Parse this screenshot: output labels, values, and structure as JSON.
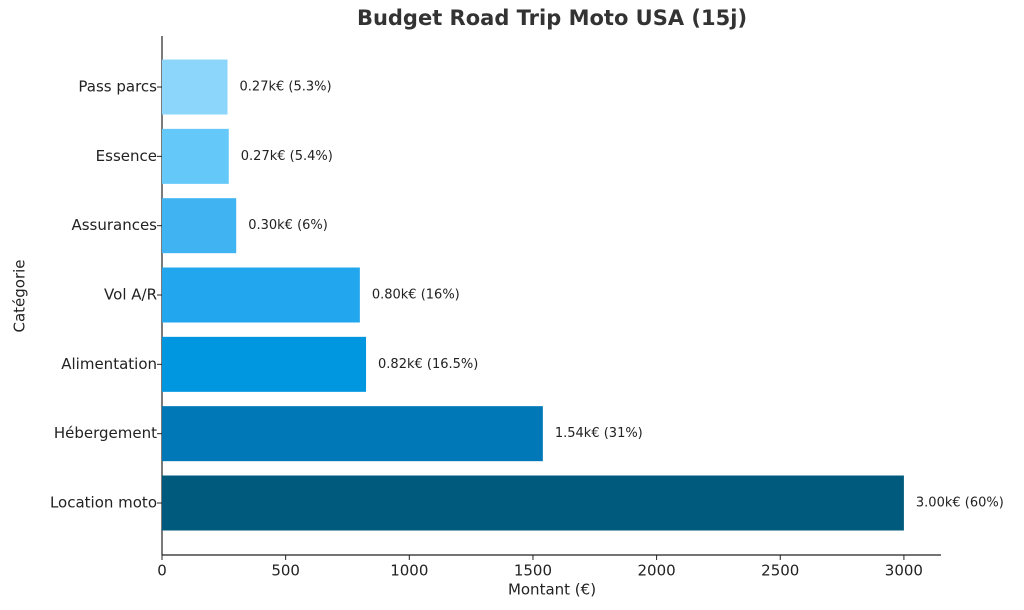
{
  "chart_data": {
    "type": "barh",
    "title": "Budget Road Trip Moto USA (15j)",
    "x_label": "Montant (€)",
    "y_label": "Catégorie",
    "categories": [
      "Location moto",
      "Hébergement",
      "Alimentation",
      "Vol A/R",
      "Assurances",
      "Essence",
      "Pass parcs"
    ],
    "values": [
      3000,
      1540,
      825,
      800,
      300,
      270,
      265
    ],
    "value_labels": [
      "3.00k€ (60%)",
      "1.54k€ (31%)",
      "0.82k€ (16.5%)",
      "0.80k€ (16%)",
      "0.30k€ (6%)",
      "0.27k€ (5.4%)",
      "0.27k€ (5.3%)"
    ],
    "colors": [
      "#005a7d",
      "#0077b6",
      "#0096e0",
      "#22a7ee",
      "#40b4f2",
      "#64c8f8",
      "#8dd6fb"
    ],
    "xlim": [
      0,
      3150
    ],
    "xticks": [
      0,
      500,
      1000,
      1500,
      2000,
      2500,
      3000
    ],
    "grid": false
  }
}
